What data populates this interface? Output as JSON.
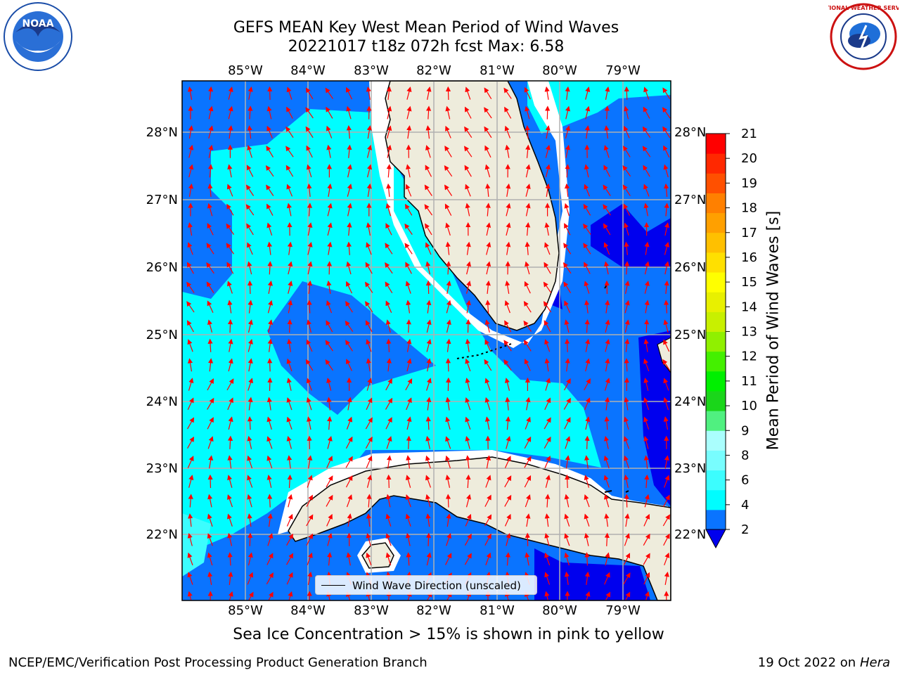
{
  "header": {
    "title_line1": "GEFS MEAN Key West Mean Period of Wind Waves",
    "title_line2": "20221017 t18z 072h fcst   Max: 6.58"
  },
  "logos": {
    "noaa_text": "NOAA",
    "nws_text": "NATIONAL WEATHER SERVICE"
  },
  "map": {
    "lon_labels": [
      "85°W",
      "84°W",
      "83°W",
      "82°W",
      "81°W",
      "80°W",
      "79°W"
    ],
    "lat_labels": [
      "28°N",
      "27°N",
      "26°N",
      "25°N",
      "24°N",
      "23°N",
      "22°N"
    ],
    "colors": {
      "land": "#eeecdc",
      "ocean_2_4": "#0a74ff",
      "ocean_4_5": "#00fdff",
      "ocean_lt2": "#0000ee",
      "ocean_5_6": "#3cfdfe",
      "arrow": "#ff0000",
      "grid": "#b0b0b0"
    },
    "legend_text": "Wind Wave Direction (unscaled)"
  },
  "colorbar": {
    "label": "Mean Period of Wind Waves [s]",
    "ticks": [
      "2",
      "4",
      "6",
      "8",
      "9",
      "10",
      "11",
      "12",
      "13",
      "14",
      "15",
      "16",
      "17",
      "18",
      "19",
      "20",
      "21"
    ],
    "colors": [
      "#0a74ff",
      "#00fdff",
      "#3cfdfe",
      "#78fdfe",
      "#aafefd",
      "#50f080",
      "#1ad61a",
      "#00f000",
      "#44f000",
      "#90f000",
      "#c8f000",
      "#e8f000",
      "#ffff00",
      "#ffe000",
      "#ffc000",
      "#ffa000",
      "#ff8000",
      "#ff5000",
      "#ff2800",
      "#ff0000"
    ]
  },
  "note": "Sea Ice Concentration > 15% is shown in pink to yellow",
  "footer": {
    "left": "NCEP/EMC/Verification Post Processing Product Generation Branch",
    "right_prefix": "19 Oct 2022 on ",
    "right_host": "Hera"
  }
}
